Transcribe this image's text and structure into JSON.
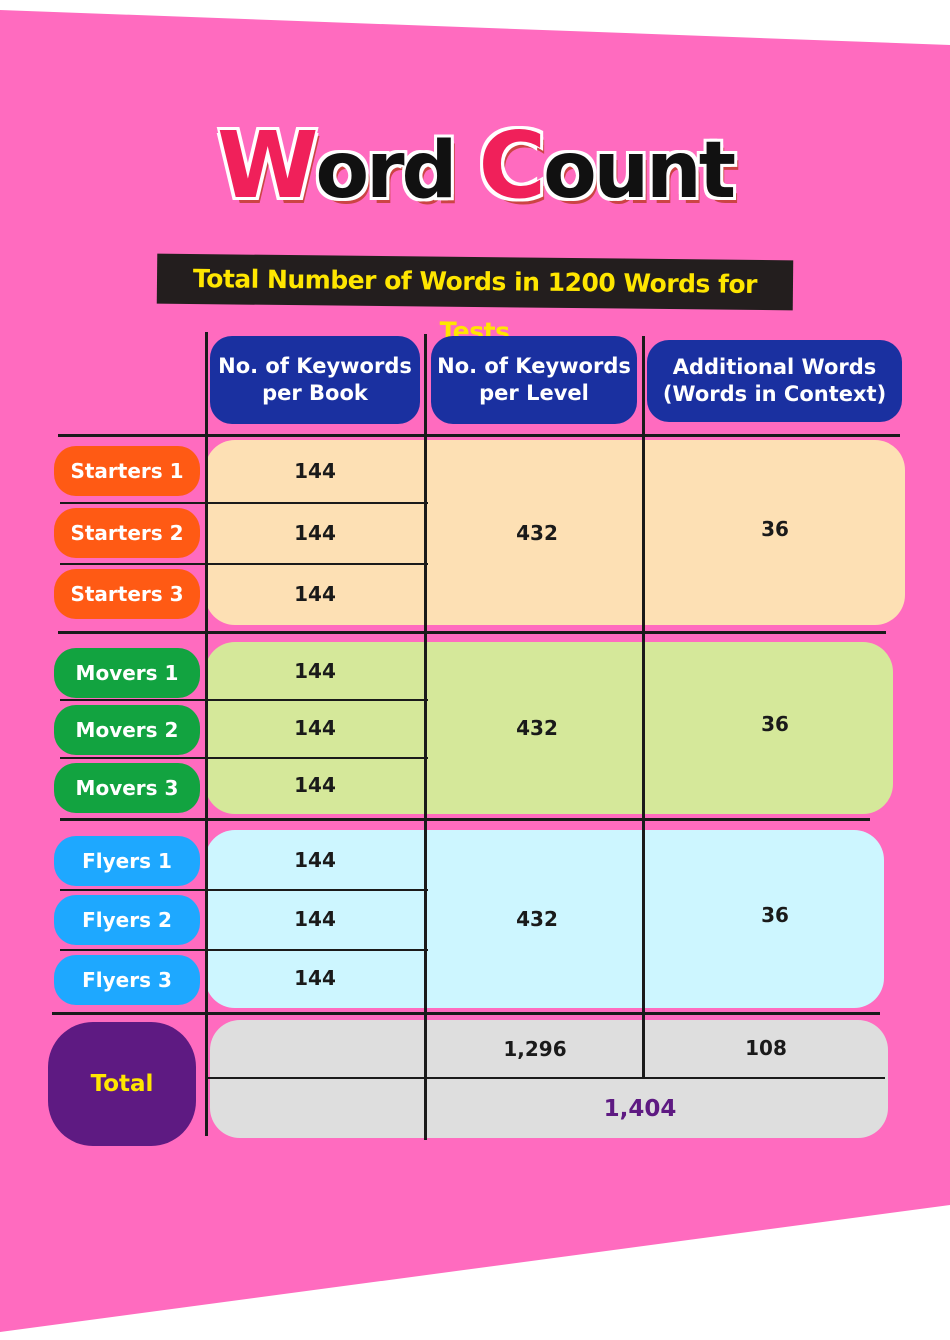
{
  "title": {
    "w": "W",
    "ord": "ord",
    "c": "C",
    "ount": "ount"
  },
  "subtitle": "Total Number of Words in 1200 Words for Tests",
  "headers": [
    "No. of Keywords per Book",
    "No. of Keywords per Level",
    "Additional Words (Words in Context)"
  ],
  "colors": {
    "background": "#ff6bbf",
    "header": "#1a30a0",
    "starters": "#ff5a14",
    "movers": "#12a340",
    "flyers": "#1ea8ff",
    "total": "#5e1a82",
    "starters_band": "#fde0b4",
    "movers_band": "#d5e89a",
    "flyers_band": "#cdf6ff",
    "total_band": "#dedede"
  },
  "groups": [
    {
      "rows": [
        {
          "label": "Starters 1",
          "per_book": "144"
        },
        {
          "label": "Starters 2",
          "per_book": "144"
        },
        {
          "label": "Starters 3",
          "per_book": "144"
        }
      ],
      "per_level": "432",
      "additional": "36"
    },
    {
      "rows": [
        {
          "label": "Movers 1",
          "per_book": "144"
        },
        {
          "label": "Movers 2",
          "per_book": "144"
        },
        {
          "label": "Movers 3",
          "per_book": "144"
        }
      ],
      "per_level": "432",
      "additional": "36"
    },
    {
      "rows": [
        {
          "label": "Flyers 1",
          "per_book": "144"
        },
        {
          "label": "Flyers 2",
          "per_book": "144"
        },
        {
          "label": "Flyers 3",
          "per_book": "144"
        }
      ],
      "per_level": "432",
      "additional": "36"
    }
  ],
  "total": {
    "label": "Total",
    "per_level": "1,296",
    "additional": "108",
    "grand": "1,404"
  }
}
